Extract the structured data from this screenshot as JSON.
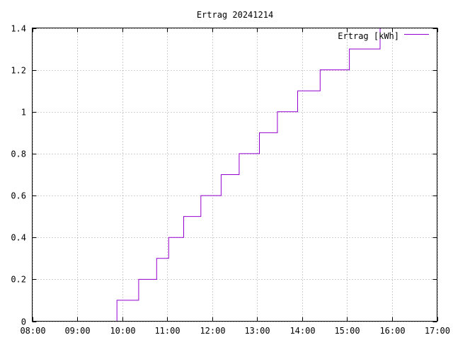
{
  "chart_data": {
    "type": "line",
    "title": "Ertrag 20241214",
    "xlabel": "",
    "ylabel": "",
    "xlim": [
      "08:00",
      "17:00"
    ],
    "ylim": [
      0,
      1.4
    ],
    "grid": true,
    "legend_position": "top-right",
    "x_ticks": [
      "08:00",
      "09:00",
      "10:00",
      "11:00",
      "12:00",
      "13:00",
      "14:00",
      "15:00",
      "16:00",
      "17:00"
    ],
    "y_ticks": [
      "0",
      "0.2",
      "0.4",
      "0.6",
      "0.8",
      "1",
      "1.2",
      "1.4"
    ],
    "series": [
      {
        "name": "Ertrag [kWh]",
        "color": "#9400d3",
        "step": true,
        "points": [
          {
            "x": "09:53",
            "y": 0
          },
          {
            "x": "09:53",
            "y": 0.1
          },
          {
            "x": "10:22",
            "y": 0.1
          },
          {
            "x": "10:22",
            "y": 0.2
          },
          {
            "x": "10:46",
            "y": 0.2
          },
          {
            "x": "10:46",
            "y": 0.3
          },
          {
            "x": "11:02",
            "y": 0.3
          },
          {
            "x": "11:02",
            "y": 0.4
          },
          {
            "x": "11:22",
            "y": 0.4
          },
          {
            "x": "11:22",
            "y": 0.5
          },
          {
            "x": "11:45",
            "y": 0.5
          },
          {
            "x": "11:45",
            "y": 0.6
          },
          {
            "x": "12:12",
            "y": 0.6
          },
          {
            "x": "12:12",
            "y": 0.7
          },
          {
            "x": "12:36",
            "y": 0.7
          },
          {
            "x": "12:36",
            "y": 0.8
          },
          {
            "x": "13:03",
            "y": 0.8
          },
          {
            "x": "13:03",
            "y": 0.9
          },
          {
            "x": "13:27",
            "y": 0.9
          },
          {
            "x": "13:27",
            "y": 1.0
          },
          {
            "x": "13:54",
            "y": 1.0
          },
          {
            "x": "13:54",
            "y": 1.1
          },
          {
            "x": "14:24",
            "y": 1.1
          },
          {
            "x": "14:24",
            "y": 1.2
          },
          {
            "x": "15:03",
            "y": 1.2
          },
          {
            "x": "15:03",
            "y": 1.3
          },
          {
            "x": "15:44",
            "y": 1.3
          },
          {
            "x": "15:44",
            "y": 1.4
          }
        ]
      }
    ]
  }
}
